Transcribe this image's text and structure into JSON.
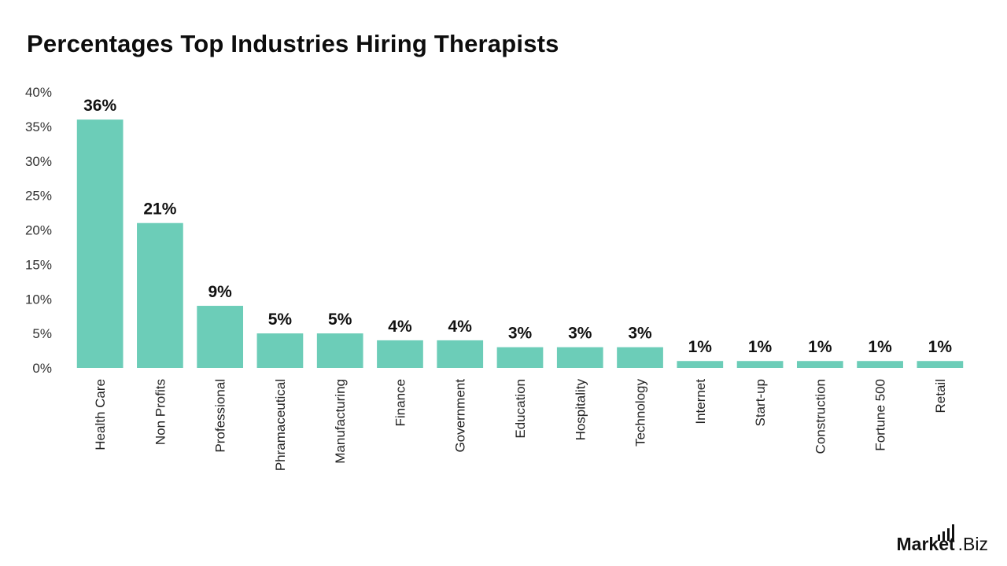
{
  "header": {
    "title": "Percentages Top Industries Hiring Therapists"
  },
  "brand": {
    "name_bold": "Market",
    "name_rest": ".Biz",
    "icon": "bar-signal-icon"
  },
  "chart_data": {
    "type": "bar",
    "title": "Percentages Top Industries Hiring Therapists",
    "xlabel": "",
    "ylabel": "",
    "ylim": [
      0,
      40
    ],
    "yticks": [
      "0%",
      "5%",
      "10%",
      "15%",
      "20%",
      "25%",
      "30%",
      "35%",
      "40%"
    ],
    "ytick_values": [
      0,
      5,
      10,
      15,
      20,
      25,
      30,
      35,
      40
    ],
    "grid": false,
    "legend": "none",
    "bar_color": "#6ccdb8",
    "categories": [
      "Health Care",
      "Non Profits",
      "Professional",
      "Phramaceutical",
      "Manufacturing",
      "Finance",
      "Government",
      "Education",
      "Hospitality",
      "Technology",
      "Internet",
      "Start-up",
      "Construction",
      "Fortune 500",
      "Retail"
    ],
    "values": [
      36,
      21,
      9,
      5,
      5,
      4,
      4,
      3,
      3,
      3,
      1,
      1,
      1,
      1,
      1
    ],
    "data_labels": [
      "36%",
      "21%",
      "9%",
      "5%",
      "5%",
      "4%",
      "4%",
      "3%",
      "3%",
      "3%",
      "1%",
      "1%",
      "1%",
      "1%",
      "1%"
    ]
  }
}
